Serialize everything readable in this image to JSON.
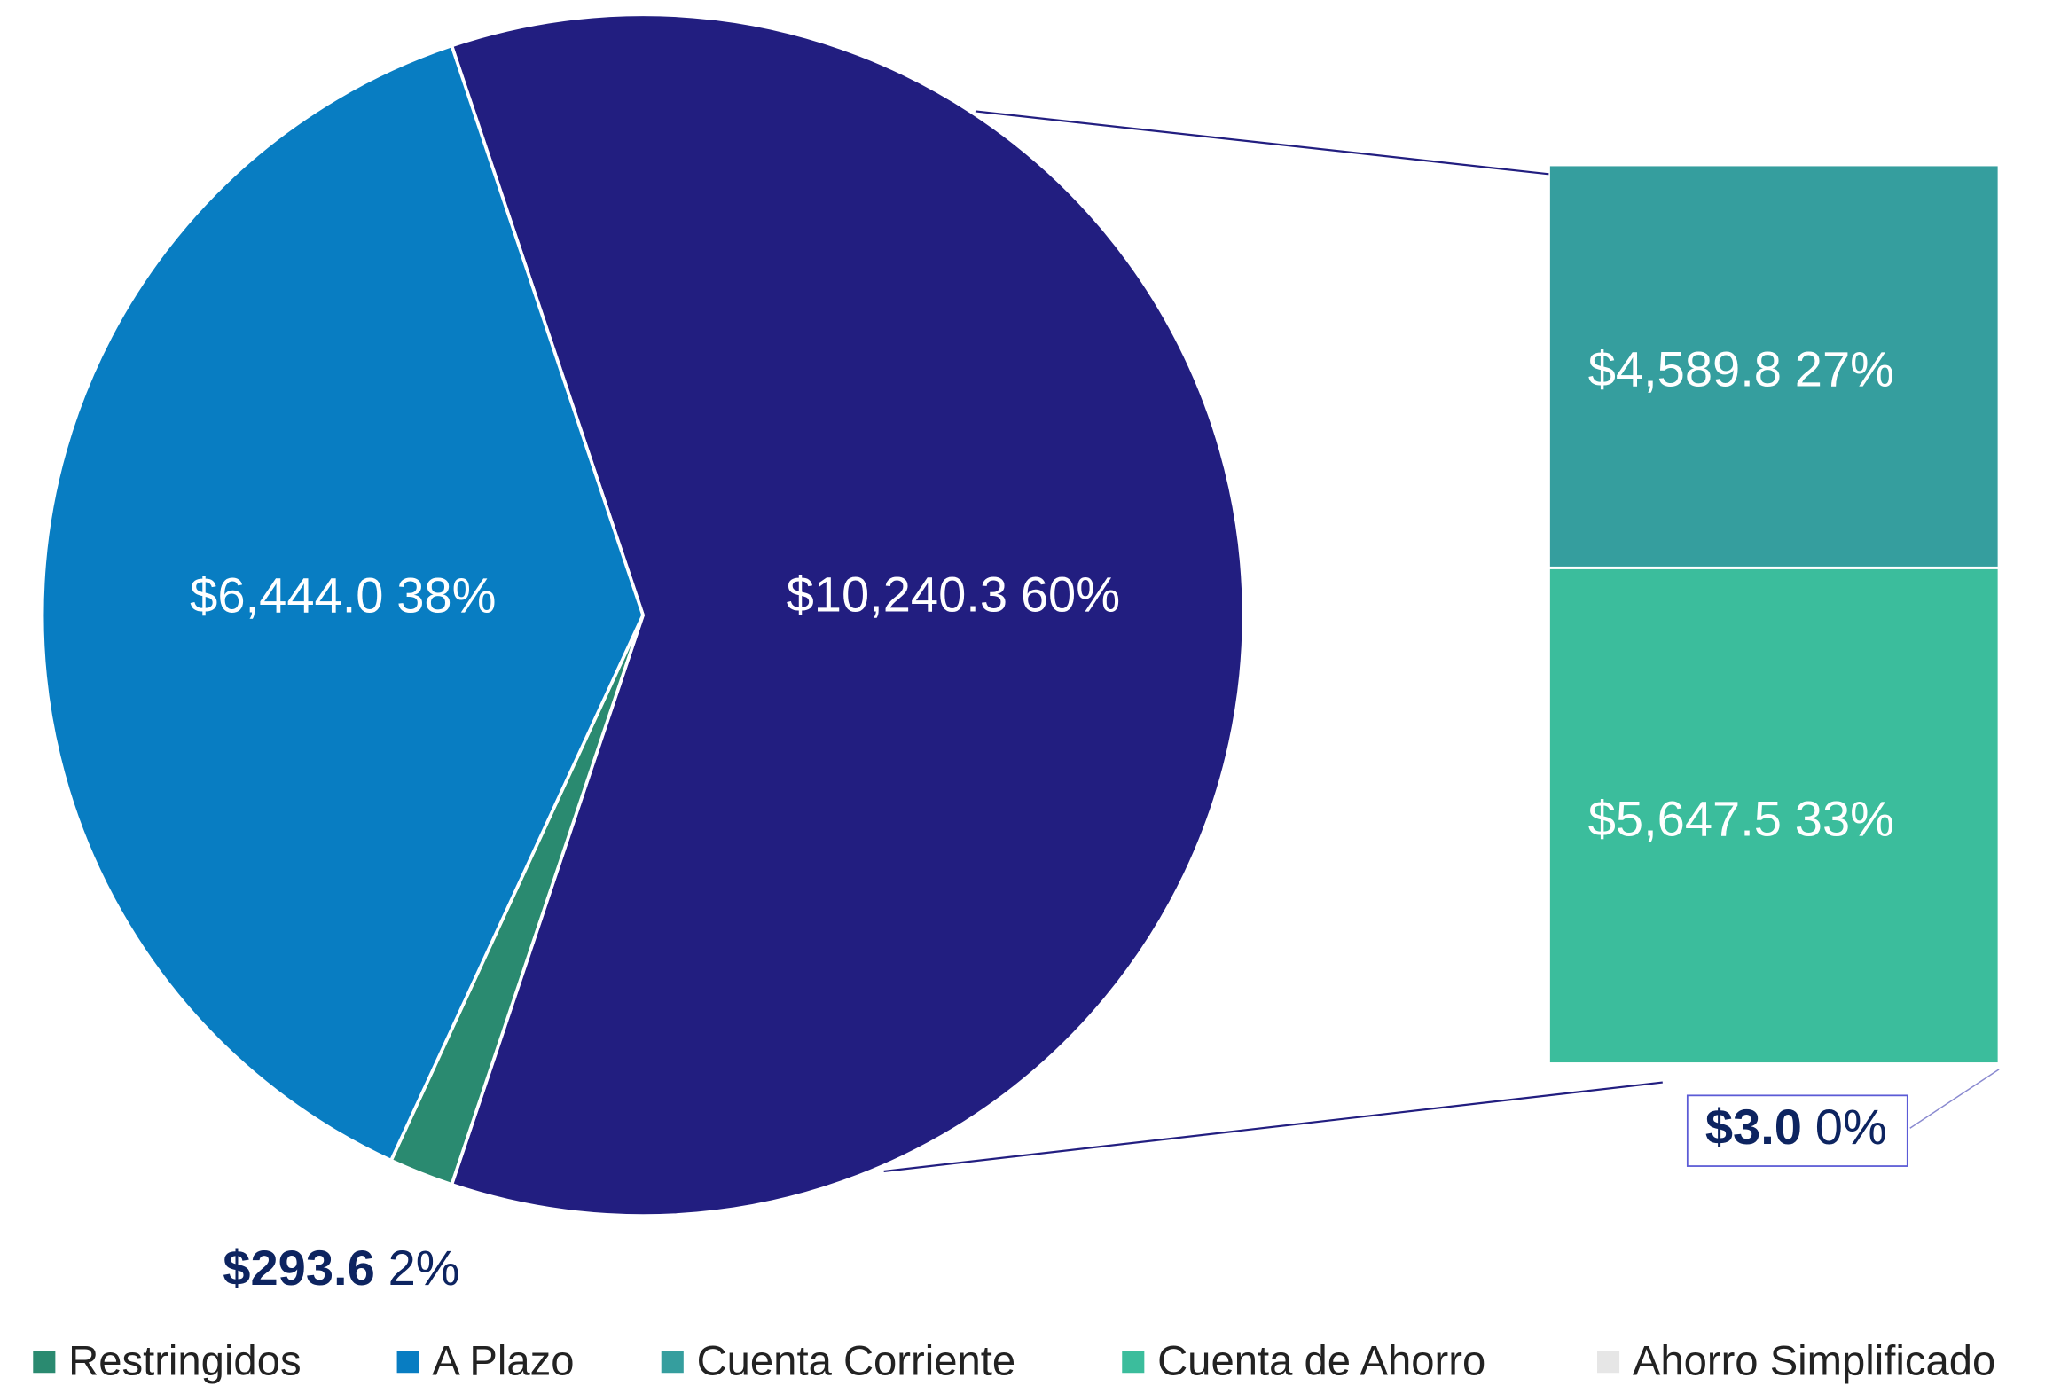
{
  "chart_data": {
    "type": "bar_of_pie",
    "categories": [
      "Restringidos",
      "A Plazo",
      null
    ],
    "values": [
      293.6,
      6444.0,
      10240.3
    ],
    "value_labels": [
      "$293.6",
      "$6,444.0",
      "$10,240.3"
    ],
    "percent_labels": [
      "2%",
      "38%",
      "60%"
    ],
    "colors": [
      "#2a8a70",
      "#087dc2",
      "#221e80"
    ],
    "breakout": {
      "categories": [
        "Cuenta Corriente",
        "Cuenta de Ahorro",
        "Ahorro Simplificado"
      ],
      "values": [
        4589.8,
        5647.5,
        3.0
      ],
      "value_labels": [
        "$4,589.8",
        "$5,647.5",
        "$3.0"
      ],
      "percent_labels": [
        "27%",
        "33%",
        "0%"
      ],
      "colors": [
        "#359e9e",
        "#3bbd9c",
        "#e6e6e6"
      ]
    },
    "legend": "bottom"
  }
}
